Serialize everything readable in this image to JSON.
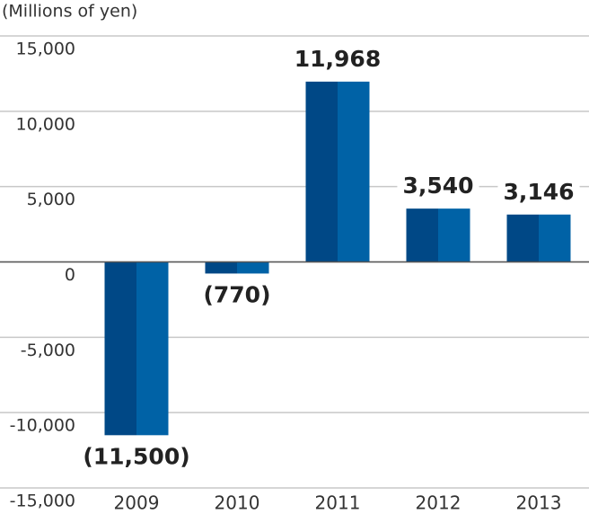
{
  "chart_data": {
    "type": "bar",
    "y_label": "(Millions of yen)",
    "categories": [
      "2009",
      "2010",
      "2011",
      "2012",
      "2013"
    ],
    "values": [
      -11500,
      -770,
      11968,
      3540,
      3146
    ],
    "value_labels": [
      "(11,500)",
      "(770)",
      "11,968",
      "3,540",
      "3,146"
    ],
    "colors": [
      "#004886",
      "#0062a6"
    ],
    "ylim": [
      -15000,
      15000
    ],
    "yticks": [
      {
        "value": -15000,
        "label": "-15,000"
      },
      {
        "value": -10000,
        "label": "-10,000"
      },
      {
        "value": -5000,
        "label": "-5,000"
      },
      0,
      {
        "value": 5000,
        "label": "5,000"
      },
      {
        "value": 10000,
        "label": "10,000"
      },
      {
        "value": 15000,
        "label": "15,000"
      }
    ],
    "grid": true
  }
}
